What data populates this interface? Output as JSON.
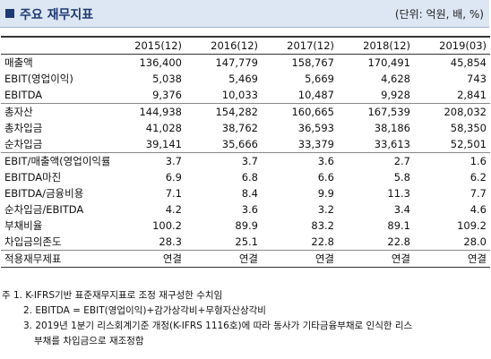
{
  "header": {
    "title": "주요 재무지표",
    "unit": "(단위: 억원, 배, %)"
  },
  "table": {
    "columns": [
      "2015(12)",
      "2016(12)",
      "2017(12)",
      "2018(12)",
      "2019(03)"
    ],
    "rows": [
      {
        "label": "매출액",
        "values": [
          "136,400",
          "147,779",
          "158,767",
          "170,491",
          "45,854"
        ]
      },
      {
        "label": "EBIT(영업이익)",
        "values": [
          "5,038",
          "5,469",
          "5,669",
          "4,628",
          "743"
        ]
      },
      {
        "label": "EBITDA",
        "values": [
          "9,376",
          "10,033",
          "10,487",
          "9,928",
          "2,841"
        ]
      },
      {
        "label": "총자산",
        "values": [
          "144,938",
          "154,282",
          "160,665",
          "167,539",
          "208,032"
        ]
      },
      {
        "label": "총차입금",
        "values": [
          "41,028",
          "38,762",
          "36,593",
          "38,186",
          "58,350"
        ]
      },
      {
        "label": "순차입금",
        "values": [
          "39,141",
          "35,666",
          "33,379",
          "33,613",
          "52,501"
        ]
      },
      {
        "label": "EBIT/매출액(영업이익률)",
        "values": [
          "3.7",
          "3.7",
          "3.6",
          "2.7",
          "1.6"
        ]
      },
      {
        "label": "EBITDA마진",
        "values": [
          "6.9",
          "6.8",
          "6.6",
          "5.8",
          "6.2"
        ]
      },
      {
        "label": "EBITDA/금융비용",
        "values": [
          "7.1",
          "8.4",
          "9.9",
          "11.3",
          "7.7"
        ]
      },
      {
        "label": "순차입금/EBITDA",
        "values": [
          "4.2",
          "3.6",
          "3.2",
          "3.4",
          "4.6"
        ]
      },
      {
        "label": "부채비율",
        "values": [
          "100.2",
          "89.9",
          "83.2",
          "89.1",
          "109.2"
        ]
      },
      {
        "label": "차입금의존도",
        "values": [
          "28.3",
          "25.1",
          "22.8",
          "22.8",
          "28.0"
        ]
      },
      {
        "label": "적용재무제표",
        "values": [
          "연결",
          "연결",
          "연결",
          "연결",
          "연결"
        ]
      }
    ]
  },
  "notes": {
    "n1": "주 1. K-IFRS기반 표준재무지표로 조정 재구성한 수치임",
    "n2": "2. EBITDA = EBIT(영업이익)+감가상각비+무형자산상각비",
    "n3a": "3. 2019년 1분기 리스회계기준 개정(K-IFRS 1116호)에 따라 동사가 기타금융부채로 인식한 리스",
    "n3b": "부채를 차입금으로 재조정함"
  }
}
